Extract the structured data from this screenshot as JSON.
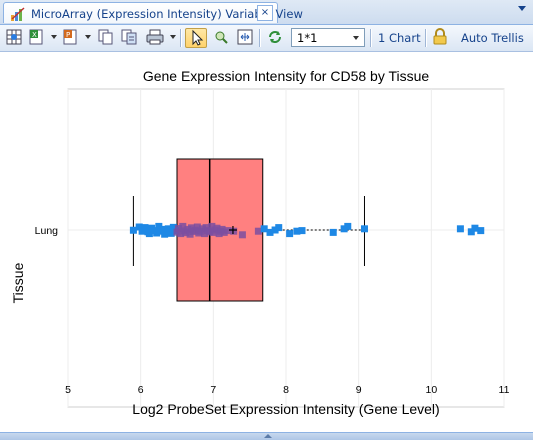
{
  "tab": {
    "title": "MicroArray (Expression Intensity) Variable View",
    "close_label": "×"
  },
  "toolbar": {
    "layout_value": "1*1",
    "one_chart_label": "1 Chart",
    "auto_trellis_label": "Auto Trellis",
    "icons": [
      "grid-export-icon",
      "excel-export-icon",
      "powerpoint-export-icon",
      "copy-icon",
      "copy-all-icon",
      "print-icon",
      "pointer-icon",
      "zoom-icon",
      "fit-icon",
      "refresh-icon",
      "lock-icon"
    ]
  },
  "chart_data": {
    "type": "box",
    "title": "Gene Expression Intensity for CD58 by Tissue",
    "xlabel": "Log2 ProbeSet Expression Intensity (Gene Level)",
    "ylabel": "Tissue",
    "xlim": [
      5,
      11
    ],
    "xticks": [
      "5",
      "6",
      "7",
      "8",
      "9",
      "10",
      "11"
    ],
    "categories": [
      "Lung"
    ],
    "box": {
      "whisker_low": 5.9,
      "q1": 6.5,
      "median": 6.95,
      "q3": 7.68,
      "whisker_high": 9.08,
      "mean": 7.27
    },
    "colors": {
      "box": "#ff8080",
      "points": "#1e88e5",
      "points_overlap": "#7b4fa0",
      "whisker": "#000000"
    },
    "points": [
      5.9,
      5.98,
      6.02,
      6.06,
      6.1,
      6.12,
      6.15,
      6.18,
      6.22,
      6.25,
      6.28,
      6.3,
      6.33,
      6.35,
      6.38,
      6.4,
      6.42,
      6.45,
      6.48,
      6.5,
      6.52,
      6.55,
      6.58,
      6.6,
      6.62,
      6.65,
      6.68,
      6.7,
      6.72,
      6.75,
      6.78,
      6.8,
      6.82,
      6.85,
      6.88,
      6.9,
      6.92,
      6.95,
      6.98,
      7.0,
      7.02,
      7.05,
      7.08,
      7.1,
      7.12,
      7.15,
      7.2,
      7.28,
      7.4,
      7.62,
      7.7,
      7.78,
      7.85,
      7.9,
      8.05,
      8.15,
      8.22,
      8.65,
      8.8,
      8.85,
      9.08,
      10.4,
      10.55,
      10.6,
      10.68
    ],
    "jitter": [
      0.02,
      -0.25,
      0.1,
      -0.2,
      0.15,
      0.3,
      -0.15,
      0.05,
      0.25,
      -0.3,
      0.1,
      -0.05,
      0.35,
      0.2,
      -0.1,
      0.12,
      0.28,
      -0.22,
      0.05,
      0.18,
      -0.12,
      0.3,
      -0.3,
      0.08,
      0.22,
      -0.05,
      0.35,
      -0.18,
      0.12,
      0.02,
      -0.25,
      0.25,
      0.1,
      -0.1,
      0.3,
      -0.2,
      0.05,
      0.15,
      -0.3,
      0.2,
      0.0,
      -0.15,
      0.3,
      0.1,
      -0.05,
      0.2,
      0.05,
      0.1,
      0.4,
      0.1,
      -0.1,
      0.2,
      0.0,
      -0.2,
      0.3,
      0.1,
      0.05,
      0.2,
      -0.1,
      -0.3,
      -0.1,
      -0.1,
      0.15,
      -0.15,
      0.05
    ]
  }
}
